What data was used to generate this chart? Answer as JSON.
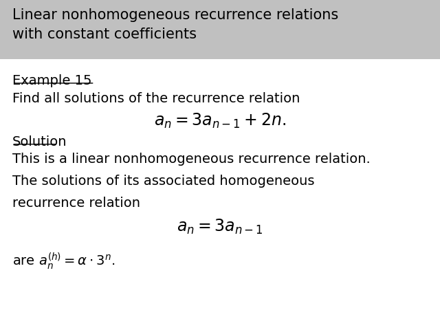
{
  "title": "Linear nonhomogeneous recurrence relations\nwith constant coefficients",
  "title_bg": "#c0c0c0",
  "title_fontsize": 15,
  "body_fontsize": 14,
  "math_fontsize": 17,
  "bg_color": "#ffffff",
  "text_color": "#000000",
  "example_label": "Example 15",
  "line1": "Find all solutions of the recurrence relation",
  "eq1": "$a_n = 3a_{n-1} + 2n.$",
  "solution_label": "Solution",
  "line2": "This is a linear nonhomogeneous recurrence relation.",
  "line3": "The solutions of its associated homogeneous",
  "line3b": "recurrence relation",
  "eq2": "$a_n = 3a_{n-1}$",
  "eq3": "are $a_n^{(h)} = \\alpha \\cdot 3^n.$"
}
